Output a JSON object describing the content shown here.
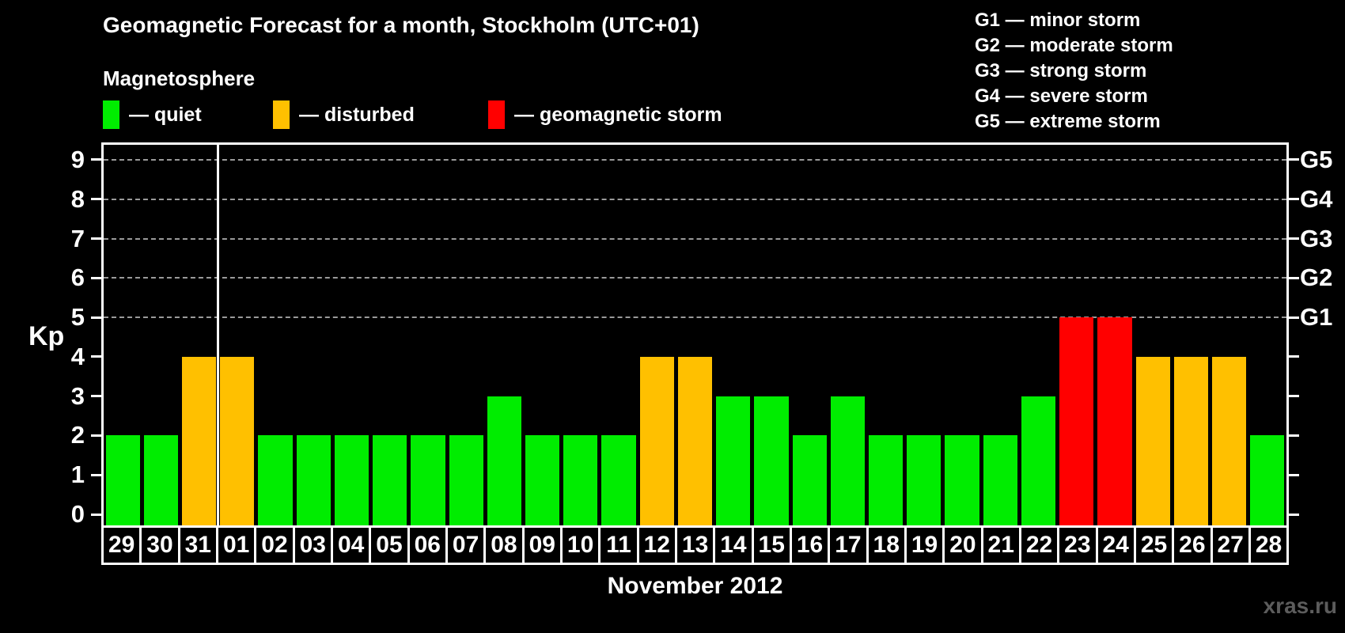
{
  "header": {
    "title": "Geomagnetic Forecast for a month, Stockholm (UTC+01)",
    "subtitle": "Magnetosphere"
  },
  "legend": {
    "items": [
      {
        "name": "quiet",
        "label": "— quiet",
        "color": "#00ed00"
      },
      {
        "name": "disturbed",
        "label": "— disturbed",
        "color": "#ffc000"
      },
      {
        "name": "storm",
        "label": "— geomagnetic storm",
        "color": "#ff0000"
      }
    ]
  },
  "g_legend": {
    "items": [
      "G1 — minor storm",
      "G2 — moderate storm",
      "G3 — strong storm",
      "G4 — severe storm",
      "G5 — extreme storm"
    ]
  },
  "watermark": "xras.ru",
  "chart_data": {
    "type": "bar",
    "title": "Geomagnetic Forecast for a month, Stockholm (UTC+01)",
    "xlabel": "November 2012",
    "ylabel": "Kp",
    "ylim": [
      -0.35,
      9.35
    ],
    "yticks": [
      0,
      1,
      2,
      3,
      4,
      5,
      6,
      7,
      8,
      9
    ],
    "gridlines_at": [
      5,
      6,
      7,
      8,
      9
    ],
    "grid": true,
    "legend_position": "top",
    "right_axis": {
      "labels": [
        {
          "value": 5,
          "label": "G1"
        },
        {
          "value": 6,
          "label": "G2"
        },
        {
          "value": 7,
          "label": "G3"
        },
        {
          "value": 8,
          "label": "G4"
        },
        {
          "value": 9,
          "label": "G5"
        }
      ]
    },
    "month_separator_between": [
      "31",
      "01"
    ],
    "categories": [
      "29",
      "30",
      "31",
      "01",
      "02",
      "03",
      "04",
      "05",
      "06",
      "07",
      "08",
      "09",
      "10",
      "11",
      "12",
      "13",
      "14",
      "15",
      "16",
      "17",
      "18",
      "19",
      "20",
      "21",
      "22",
      "23",
      "24",
      "25",
      "26",
      "27",
      "28"
    ],
    "values": [
      2,
      2,
      4,
      4,
      2,
      2,
      2,
      2,
      2,
      2,
      3,
      2,
      2,
      2,
      4,
      4,
      3,
      3,
      2,
      3,
      2,
      2,
      2,
      2,
      3,
      5,
      5,
      4,
      4,
      4,
      2
    ],
    "statuses": [
      "quiet",
      "quiet",
      "disturbed",
      "disturbed",
      "quiet",
      "quiet",
      "quiet",
      "quiet",
      "quiet",
      "quiet",
      "quiet",
      "quiet",
      "quiet",
      "quiet",
      "disturbed",
      "disturbed",
      "quiet",
      "quiet",
      "quiet",
      "quiet",
      "quiet",
      "quiet",
      "quiet",
      "quiet",
      "quiet",
      "storm",
      "storm",
      "disturbed",
      "disturbed",
      "disturbed",
      "quiet"
    ],
    "colors": {
      "quiet": "#00ed00",
      "disturbed": "#ffc000",
      "storm": "#ff0000",
      "grid": "#9a9a9a",
      "axis": "#ffffff"
    }
  }
}
